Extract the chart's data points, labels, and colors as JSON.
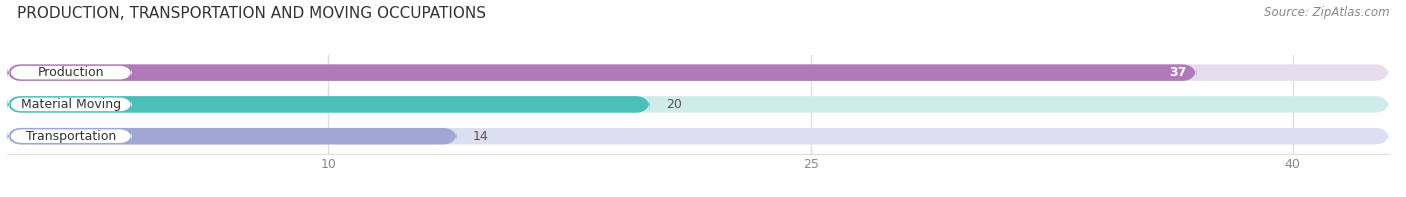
{
  "title": "PRODUCTION, TRANSPORTATION AND MOVING OCCUPATIONS",
  "source": "Source: ZipAtlas.com",
  "categories": [
    "Production",
    "Material Moving",
    "Transportation"
  ],
  "values": [
    37,
    20,
    14
  ],
  "bar_colors": [
    "#b07ab8",
    "#4bbfb8",
    "#9fa8d5"
  ],
  "bar_bg_colors": [
    "#e8dded",
    "#d0ecea",
    "#dddff0"
  ],
  "xticks": [
    10,
    25,
    40
  ],
  "xlim": [
    0,
    43
  ],
  "figsize": [
    14.06,
    1.97
  ],
  "dpi": 100,
  "title_fontsize": 11,
  "source_fontsize": 8.5,
  "bar_label_fontsize": 9,
  "category_fontsize": 9,
  "bar_height": 0.52,
  "bar_gap": 0.38,
  "bg_color": "#ffffff"
}
